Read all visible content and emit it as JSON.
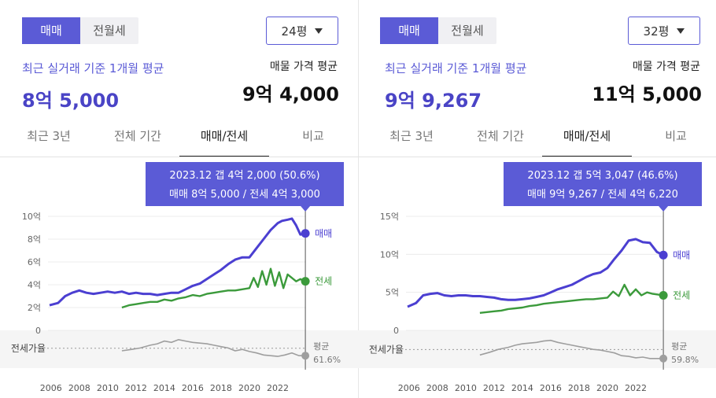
{
  "panels": [
    {
      "segment": {
        "sale": "매매",
        "jeonse": "전월세",
        "active": "sale"
      },
      "size": "24평",
      "recent_label": "최근 실거래 기준 1개월 평균",
      "recent_value": "8억 5,000",
      "listing_label": "매물 가격 평균",
      "listing_value": "9억 4,000",
      "tabs": [
        "최근 3년",
        "전체 기간",
        "매매/전세",
        "비교"
      ],
      "active_tab": 2,
      "tooltip": {
        "line1": "2023.12  갭 4억 2,000 (50.6%)",
        "line2": "매매 8억 5,000 / 전세 4억 3,000"
      },
      "ratio_label": "전세가율",
      "avg_label": "평균",
      "avg_value": "61.6%",
      "series_labels": {
        "sale": "매매",
        "jeonse": "전세"
      },
      "chart_data": {
        "type": "line",
        "ylim": [
          0,
          10
        ],
        "y_tick_labels": [
          "0",
          "2억",
          "4억",
          "6억",
          "8억",
          "10억"
        ],
        "y_tick_values": [
          0,
          2,
          4,
          6,
          8,
          10
        ],
        "x_tick_labels": [
          "2006",
          "2008",
          "2010",
          "2012",
          "2014",
          "2016",
          "2018",
          "2020",
          "2022"
        ],
        "x_tick_values": [
          2006,
          2008,
          2010,
          2012,
          2014,
          2016,
          2018,
          2020,
          2022
        ],
        "xlim": [
          2005.9,
          2024.0
        ],
        "cursor_x": 2023.95,
        "series": [
          {
            "name": "매매",
            "color": "#4b3fd1",
            "x": [
              2005.9,
              2006.5,
              2007.0,
              2007.5,
              2008.0,
              2008.5,
              2009.0,
              2009.5,
              2010.0,
              2010.5,
              2011.0,
              2011.5,
              2012.0,
              2012.5,
              2013.0,
              2013.5,
              2014.0,
              2014.5,
              2015.0,
              2015.5,
              2016.0,
              2016.5,
              2017.0,
              2017.5,
              2018.0,
              2018.5,
              2019.0,
              2019.5,
              2020.0,
              2020.5,
              2021.0,
              2021.5,
              2022.0,
              2022.3,
              2022.7,
              2023.0,
              2023.3,
              2023.6,
              2023.95
            ],
            "values": [
              2.2,
              2.4,
              3.0,
              3.3,
              3.5,
              3.3,
              3.2,
              3.3,
              3.4,
              3.3,
              3.4,
              3.2,
              3.3,
              3.2,
              3.2,
              3.1,
              3.2,
              3.3,
              3.3,
              3.6,
              3.9,
              4.1,
              4.5,
              4.9,
              5.3,
              5.8,
              6.2,
              6.4,
              6.4,
              7.2,
              8.0,
              8.8,
              9.4,
              9.6,
              9.7,
              9.8,
              9.2,
              8.4,
              8.5
            ]
          },
          {
            "name": "전세",
            "color": "#3b9a3b",
            "x": [
              2011.0,
              2011.5,
              2012.0,
              2012.5,
              2013.0,
              2013.5,
              2014.0,
              2014.5,
              2015.0,
              2015.5,
              2016.0,
              2016.5,
              2017.0,
              2017.5,
              2018.0,
              2018.5,
              2019.0,
              2019.5,
              2020.0,
              2020.3,
              2020.6,
              2020.9,
              2021.2,
              2021.5,
              2021.8,
              2022.1,
              2022.4,
              2022.7,
              2023.0,
              2023.3,
              2023.6,
              2023.95
            ],
            "values": [
              2.0,
              2.2,
              2.3,
              2.4,
              2.5,
              2.5,
              2.7,
              2.6,
              2.8,
              2.9,
              3.1,
              3.0,
              3.2,
              3.3,
              3.4,
              3.5,
              3.5,
              3.6,
              3.7,
              4.6,
              3.8,
              5.2,
              4.0,
              5.4,
              3.9,
              5.1,
              3.7,
              4.9,
              4.6,
              4.3,
              4.5,
              4.3
            ]
          }
        ],
        "ratio": {
          "name": "전세가율",
          "color": "#9e9e9e",
          "x": [
            2011.0,
            2011.7,
            2012.3,
            2013.0,
            2013.5,
            2014.0,
            2014.5,
            2015.0,
            2015.5,
            2016.0,
            2016.5,
            2017.0,
            2017.5,
            2018.0,
            2018.5,
            2019.0,
            2019.5,
            2020.0,
            2020.5,
            2021.0,
            2021.5,
            2022.0,
            2022.5,
            2023.0,
            2023.5,
            2023.95
          ],
          "values": [
            58,
            60,
            62,
            66,
            68,
            72,
            70,
            74,
            72,
            70,
            69,
            68,
            66,
            64,
            62,
            58,
            60,
            57,
            55,
            52,
            51,
            50,
            52,
            55,
            51,
            51
          ],
          "avg": 61.6,
          "ylim": [
            40,
            85
          ]
        }
      }
    },
    {
      "segment": {
        "sale": "매매",
        "jeonse": "전월세",
        "active": "sale"
      },
      "size": "32평",
      "recent_label": "최근 실거래 기준 1개월 평균",
      "recent_value": "9억 9,267",
      "listing_label": "매물 가격 평균",
      "listing_value": "11억 5,000",
      "tabs": [
        "최근 3년",
        "전체 기간",
        "매매/전세",
        "비교"
      ],
      "active_tab": 2,
      "tooltip": {
        "line1": "2023.12  갭 5억 3,047 (46.6%)",
        "line2": "매매 9억 9,267 / 전세 4억 6,220"
      },
      "ratio_label": "전세가율",
      "avg_label": "평균",
      "avg_value": "59.8%",
      "series_labels": {
        "sale": "매매",
        "jeonse": "전세"
      },
      "chart_data": {
        "type": "line",
        "ylim": [
          0,
          15
        ],
        "y_tick_labels": [
          "0",
          "5억",
          "10억",
          "15억"
        ],
        "y_tick_values": [
          0,
          5,
          10,
          15
        ],
        "x_tick_labels": [
          "2006",
          "2008",
          "2010",
          "2012",
          "2014",
          "2016",
          "2018",
          "2020",
          "2022"
        ],
        "x_tick_values": [
          2006,
          2008,
          2010,
          2012,
          2014,
          2016,
          2018,
          2020,
          2022
        ],
        "xlim": [
          2005.9,
          2024.0
        ],
        "cursor_x": 2023.95,
        "series": [
          {
            "name": "매매",
            "color": "#4b3fd1",
            "x": [
              2005.9,
              2006.5,
              2007.0,
              2007.5,
              2008.0,
              2008.5,
              2009.0,
              2009.5,
              2010.0,
              2010.5,
              2011.0,
              2011.5,
              2012.0,
              2012.5,
              2013.0,
              2013.5,
              2014.0,
              2014.5,
              2015.0,
              2015.5,
              2016.0,
              2016.5,
              2017.0,
              2017.5,
              2018.0,
              2018.5,
              2019.0,
              2019.5,
              2020.0,
              2020.5,
              2021.0,
              2021.5,
              2022.0,
              2022.5,
              2023.0,
              2023.5,
              2023.95
            ],
            "values": [
              3.1,
              3.6,
              4.6,
              4.8,
              4.9,
              4.6,
              4.5,
              4.6,
              4.6,
              4.5,
              4.5,
              4.4,
              4.3,
              4.1,
              4.0,
              4.0,
              4.1,
              4.2,
              4.4,
              4.6,
              5.0,
              5.4,
              5.7,
              6.0,
              6.5,
              7.0,
              7.4,
              7.6,
              8.2,
              9.4,
              10.5,
              11.8,
              12.0,
              11.6,
              11.5,
              10.3,
              9.9
            ]
          },
          {
            "name": "전세",
            "color": "#3b9a3b",
            "x": [
              2011.0,
              2011.5,
              2012.0,
              2012.5,
              2013.0,
              2013.5,
              2014.0,
              2014.5,
              2015.0,
              2015.5,
              2016.0,
              2016.5,
              2017.0,
              2017.5,
              2018.0,
              2018.5,
              2019.0,
              2019.5,
              2020.0,
              2020.4,
              2020.8,
              2021.2,
              2021.6,
              2022.0,
              2022.4,
              2022.8,
              2023.2,
              2023.6,
              2023.95
            ],
            "values": [
              2.3,
              2.4,
              2.5,
              2.6,
              2.8,
              2.9,
              3.0,
              3.2,
              3.3,
              3.5,
              3.6,
              3.7,
              3.8,
              3.9,
              4.0,
              4.1,
              4.1,
              4.2,
              4.3,
              5.1,
              4.5,
              6.0,
              4.6,
              5.4,
              4.6,
              5.0,
              4.8,
              4.7,
              4.6
            ]
          }
        ],
        "ratio": {
          "name": "전세가율",
          "color": "#9e9e9e",
          "x": [
            2011.0,
            2011.7,
            2012.3,
            2013.0,
            2013.5,
            2014.0,
            2014.5,
            2015.0,
            2015.5,
            2016.0,
            2016.5,
            2017.0,
            2017.5,
            2018.0,
            2018.5,
            2019.0,
            2019.5,
            2020.0,
            2020.5,
            2021.0,
            2021.5,
            2022.0,
            2022.5,
            2023.0,
            2023.5,
            2023.95
          ],
          "values": [
            52,
            56,
            60,
            63,
            66,
            68,
            69,
            70,
            72,
            73,
            70,
            68,
            66,
            64,
            62,
            60,
            59,
            57,
            55,
            51,
            50,
            48,
            49,
            47,
            47,
            47
          ],
          "avg": 59.8,
          "ylim": [
            40,
            85
          ]
        }
      }
    }
  ]
}
